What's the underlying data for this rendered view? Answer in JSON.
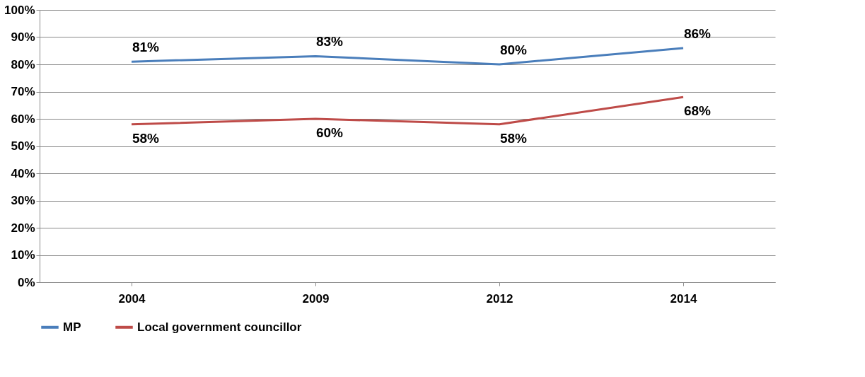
{
  "chart_data": {
    "type": "line",
    "categories": [
      "2004",
      "2009",
      "2012",
      "2014"
    ],
    "series": [
      {
        "name": "MP",
        "color": "#4a7ebb",
        "values": [
          81,
          83,
          80,
          86
        ],
        "value_labels": [
          "81%",
          "83%",
          "80%",
          "86%"
        ]
      },
      {
        "name": "Local government councillor",
        "color": "#be4b48",
        "values": [
          58,
          60,
          58,
          68
        ],
        "value_labels": [
          "58%",
          "60%",
          "58%",
          "68%"
        ]
      }
    ],
    "ylim": [
      0,
      100
    ],
    "yticks": [
      {
        "value": 0,
        "label": "0%"
      },
      {
        "value": 10,
        "label": "10%"
      },
      {
        "value": 20,
        "label": "20%"
      },
      {
        "value": 30,
        "label": "30%"
      },
      {
        "value": 40,
        "label": "40%"
      },
      {
        "value": 50,
        "label": "50%"
      },
      {
        "value": 60,
        "label": "60%"
      },
      {
        "value": 70,
        "label": "70%"
      },
      {
        "value": 80,
        "label": "80%"
      },
      {
        "value": 90,
        "label": "90%"
      },
      {
        "value": 100,
        "label": "100%"
      }
    ],
    "grid": "y",
    "legend": "bottom",
    "marker": "none",
    "line_style": "solid"
  }
}
